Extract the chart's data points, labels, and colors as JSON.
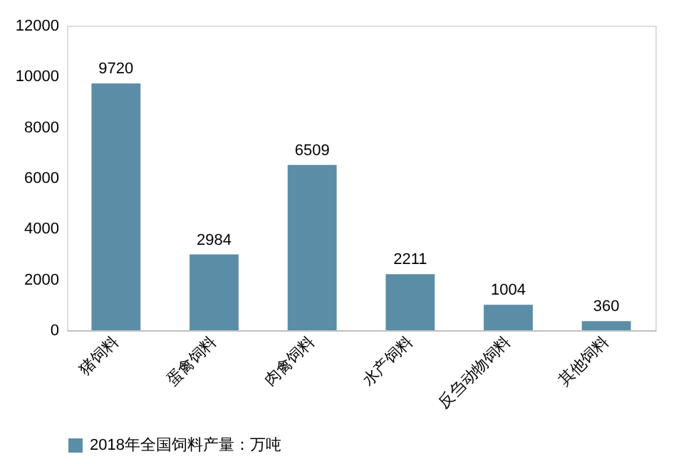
{
  "chart_data": {
    "type": "bar",
    "categories": [
      "猪饲料",
      "蛋禽饲料",
      "肉禽饲料",
      "水产饲料",
      "反刍动物饲料",
      "其他饲料"
    ],
    "series": [
      {
        "name": "2018年全国饲料产量：万吨",
        "color": "#5b8ea6",
        "values": [
          9720,
          2984,
          6509,
          2211,
          1004,
          360
        ]
      }
    ],
    "ylim": [
      0,
      12000
    ],
    "yticks": [
      0,
      2000,
      4000,
      6000,
      8000,
      10000,
      12000
    ],
    "data_labels": true,
    "grid": false,
    "legend": "bottom"
  }
}
